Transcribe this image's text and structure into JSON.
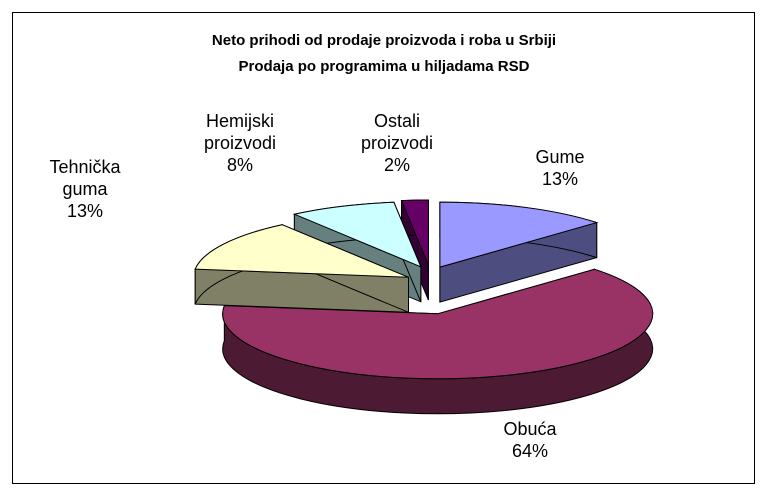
{
  "chart_data": {
    "type": "pie",
    "title": "Neto prihodi od prodaje proizvoda i roba u Srbiji",
    "subtitle": "Prodaja po programima u hiljadama RSD",
    "categories": [
      "Gume",
      "Obuća",
      "Tehnička guma",
      "Hemijski proizvodi",
      "Ostali proizvodi"
    ],
    "values": [
      13,
      64,
      13,
      8,
      2
    ],
    "value_labels": [
      "13%",
      "64%",
      "13%",
      "8%",
      "2%"
    ],
    "colors": [
      "#9999ff",
      "#993366",
      "#ffffcc",
      "#ccffff",
      "#660066"
    ]
  }
}
